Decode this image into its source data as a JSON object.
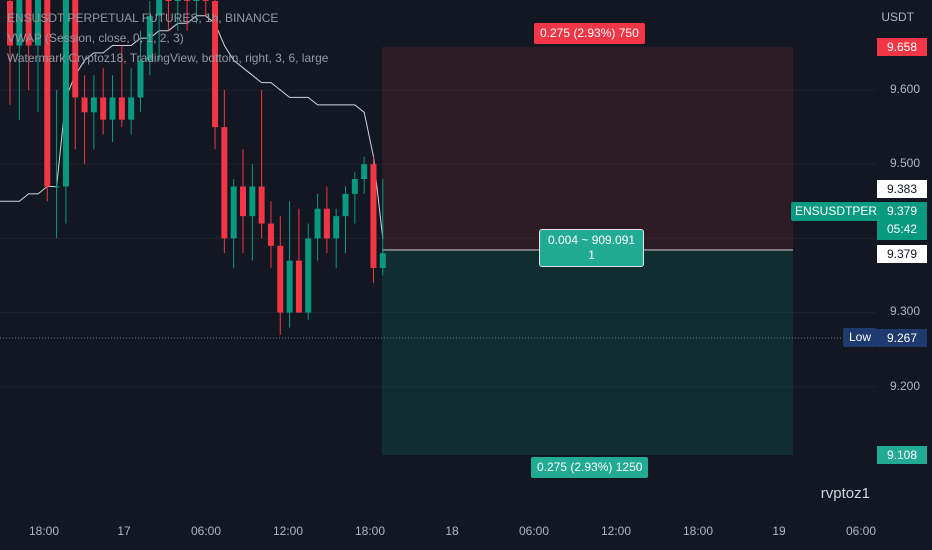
{
  "legend": {
    "line1": "ENSUSDT PERPETUAL FUTURES, 1h, BINANCE",
    "line2": "VWAP (Session, close, 0, 1, 2, 3)",
    "line3": "Watermark Cryptoz18, TradingView, bottom, right, 3, 6, large"
  },
  "axis": {
    "currency": "USDT",
    "price_ticks": [
      "9.600",
      "9.500",
      "9.300",
      "9.200"
    ],
    "time_ticks": [
      "18:00",
      "17",
      "06:00",
      "12:00",
      "18:00",
      "18",
      "06:00",
      "12:00",
      "18:00",
      "19",
      "06:00"
    ]
  },
  "labels": {
    "target_price": "9.658",
    "entry_price": "9.383",
    "symbol": "ENSUSDTPERP",
    "last_price": "9.379",
    "countdown": "05:42",
    "current_price": "9.379",
    "low_label": "Low",
    "low_price": "9.267",
    "stop_price": "9.108"
  },
  "position": {
    "top_tag": "0.275 (2.93%) 750",
    "mid_line1": "0.004 ~ 909.091",
    "mid_line2": "1",
    "bottom_tag": "0.275 (2.93%) 1250"
  },
  "watermark": "rvptoz1",
  "colors": {
    "up": "#089981",
    "down": "#f23645",
    "vwap": "#d1d4dc",
    "bg": "#131722"
  },
  "chart_data": {
    "type": "candlestick",
    "title": "ENSUSDT PERPETUAL FUTURES, 1h, BINANCE",
    "ylim": [
      9.05,
      9.75
    ],
    "candles": [
      {
        "o": 9.72,
        "h": 9.76,
        "l": 9.58,
        "c": 9.66
      },
      {
        "o": 9.66,
        "h": 9.75,
        "l": 9.56,
        "c": 9.74
      },
      {
        "o": 9.74,
        "h": 9.76,
        "l": 9.6,
        "c": 9.66
      },
      {
        "o": 9.66,
        "h": 9.75,
        "l": 9.57,
        "c": 9.74
      },
      {
        "o": 9.74,
        "h": 9.76,
        "l": 9.45,
        "c": 9.47
      },
      {
        "o": 9.47,
        "h": 9.6,
        "l": 9.4,
        "c": 9.47
      },
      {
        "o": 9.47,
        "h": 9.75,
        "l": 9.42,
        "c": 9.73
      },
      {
        "o": 9.73,
        "h": 9.75,
        "l": 9.52,
        "c": 9.59
      },
      {
        "o": 9.59,
        "h": 9.62,
        "l": 9.5,
        "c": 9.57
      },
      {
        "o": 9.57,
        "h": 9.62,
        "l": 9.52,
        "c": 9.59
      },
      {
        "o": 9.59,
        "h": 9.63,
        "l": 9.54,
        "c": 9.56
      },
      {
        "o": 9.56,
        "h": 9.62,
        "l": 9.53,
        "c": 9.59
      },
      {
        "o": 9.59,
        "h": 9.66,
        "l": 9.55,
        "c": 9.56
      },
      {
        "o": 9.56,
        "h": 9.63,
        "l": 9.54,
        "c": 9.59
      },
      {
        "o": 9.59,
        "h": 9.68,
        "l": 9.57,
        "c": 9.64
      },
      {
        "o": 9.64,
        "h": 9.72,
        "l": 9.62,
        "c": 9.7
      },
      {
        "o": 9.7,
        "h": 9.76,
        "l": 9.64,
        "c": 9.74
      },
      {
        "o": 9.74,
        "h": 9.76,
        "l": 9.68,
        "c": 9.72
      },
      {
        "o": 9.72,
        "h": 9.76,
        "l": 9.68,
        "c": 9.74
      },
      {
        "o": 9.74,
        "h": 9.76,
        "l": 9.68,
        "c": 9.73
      },
      {
        "o": 9.73,
        "h": 9.76,
        "l": 9.69,
        "c": 9.75
      },
      {
        "o": 9.75,
        "h": 9.76,
        "l": 9.7,
        "c": 9.72
      },
      {
        "o": 9.72,
        "h": 9.76,
        "l": 9.52,
        "c": 9.55
      },
      {
        "o": 9.55,
        "h": 9.6,
        "l": 9.38,
        "c": 9.4
      },
      {
        "o": 9.4,
        "h": 9.48,
        "l": 9.36,
        "c": 9.47
      },
      {
        "o": 9.47,
        "h": 9.52,
        "l": 9.38,
        "c": 9.43
      },
      {
        "o": 9.43,
        "h": 9.5,
        "l": 9.37,
        "c": 9.47
      },
      {
        "o": 9.47,
        "h": 9.6,
        "l": 9.4,
        "c": 9.42
      },
      {
        "o": 9.42,
        "h": 9.45,
        "l": 9.36,
        "c": 9.39
      },
      {
        "o": 9.39,
        "h": 9.43,
        "l": 9.27,
        "c": 9.3
      },
      {
        "o": 9.3,
        "h": 9.45,
        "l": 9.28,
        "c": 9.37
      },
      {
        "o": 9.37,
        "h": 9.44,
        "l": 9.3,
        "c": 9.3
      },
      {
        "o": 9.3,
        "h": 9.42,
        "l": 9.29,
        "c": 9.4
      },
      {
        "o": 9.4,
        "h": 9.46,
        "l": 9.37,
        "c": 9.44
      },
      {
        "o": 9.44,
        "h": 9.47,
        "l": 9.38,
        "c": 9.4
      },
      {
        "o": 9.4,
        "h": 9.44,
        "l": 9.36,
        "c": 9.43
      },
      {
        "o": 9.43,
        "h": 9.47,
        "l": 9.38,
        "c": 9.46
      },
      {
        "o": 9.46,
        "h": 9.49,
        "l": 9.42,
        "c": 9.48
      },
      {
        "o": 9.48,
        "h": 9.51,
        "l": 9.46,
        "c": 9.5
      },
      {
        "o": 9.5,
        "h": 9.51,
        "l": 9.34,
        "c": 9.36
      },
      {
        "o": 9.36,
        "h": 9.48,
        "l": 9.35,
        "c": 9.38
      }
    ],
    "vwap": [
      9.45,
      9.45,
      9.46,
      9.46,
      9.47,
      9.47,
      9.59,
      9.62,
      9.64,
      9.65,
      9.65,
      9.66,
      9.66,
      9.66,
      9.67,
      9.67,
      9.68,
      9.68,
      9.69,
      9.69,
      9.7,
      9.7,
      9.69,
      9.66,
      9.64,
      9.63,
      9.62,
      9.61,
      9.61,
      9.6,
      9.59,
      9.59,
      9.59,
      9.58,
      9.58,
      9.58,
      9.58,
      9.58,
      9.57,
      9.51,
      9.4
    ],
    "position": {
      "entry": 9.383,
      "target": 9.658,
      "stop": 9.108
    },
    "last_price": 9.379,
    "low": 9.267
  }
}
